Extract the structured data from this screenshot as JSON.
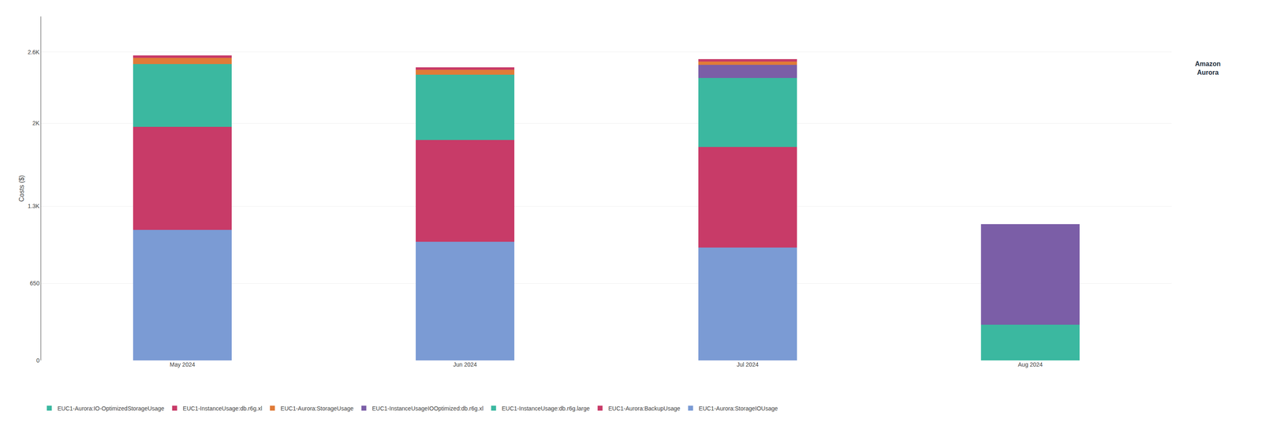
{
  "chart_data": {
    "type": "bar",
    "stacked": true,
    "categories": [
      "May 2024",
      "Jun 2024",
      "Jul 2024",
      "Aug 2024"
    ],
    "series": [
      {
        "name": "EUC1-Aurora:StorageIOUsage",
        "values": [
          1100,
          1000,
          950,
          0
        ],
        "color": "#7B9BD4"
      },
      {
        "name": "EUC1-Aurora:BackupUsage",
        "values": [
          870,
          860,
          850,
          0
        ],
        "color": "#C83B68"
      },
      {
        "name": "EUC1-InstanceUsage:db.r6g.large",
        "values": [
          530,
          550,
          580,
          0
        ],
        "color": "#3BB8A0"
      },
      {
        "name": "EUC1-InstanceUsageIOOptimized:db.r6g.xl",
        "values": [
          0,
          0,
          110,
          0
        ],
        "color": "#7B5EA7"
      },
      {
        "name": "EUC1-Aurora:StorageUsage",
        "values": [
          50,
          40,
          30,
          0
        ],
        "color": "#E07B38"
      },
      {
        "name": "EUC1-InstanceUsage:db.r6g.xl",
        "values": [
          20,
          20,
          20,
          0
        ],
        "color": "#C83B68"
      },
      {
        "name": "EUC1-Aurora:IO-OptimizedStorageUsage",
        "values": [
          0,
          0,
          0,
          300
        ],
        "color": "#3BB8A0"
      },
      {
        "values": [
          0,
          0,
          0,
          850
        ],
        "color": "#7B5EA7"
      }
    ],
    "ylabel": "Costs ($)",
    "ylim": [
      0,
      2900
    ],
    "yticks": [
      0,
      650,
      {
        "value": 1300,
        "label": "1.3K"
      },
      {
        "value": 2000,
        "label": "2K"
      },
      {
        "value": 2600,
        "label": "2.6K"
      }
    ],
    "grid": true,
    "legend": "bottom",
    "annotations": [
      {
        "text": "Amazon\nAurora"
      }
    ]
  }
}
